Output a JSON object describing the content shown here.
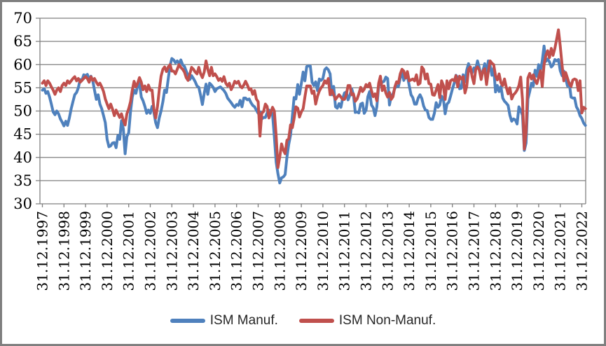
{
  "colors": {
    "frame_border": "#7f7f7f",
    "grid": "#7f7f7f",
    "axis": "#7f7f7f",
    "background": "#ffffff",
    "series_blue": "#4F81BD",
    "series_red": "#C0504D"
  },
  "legend": {
    "items": [
      {
        "label": "ISM Manuf.",
        "color": "#4F81BD"
      },
      {
        "label": "ISM Non-Manuf.",
        "color": "#C0504D"
      }
    ],
    "position": "bottom"
  },
  "chart_data": {
    "type": "line",
    "title": "",
    "xlabel": "",
    "ylabel": "",
    "ylim": [
      30,
      70
    ],
    "y_ticks": [
      70,
      65,
      60,
      55,
      50,
      45,
      40,
      35,
      30
    ],
    "grid": "horizontal",
    "legend_position": "bottom",
    "x_start": "1997-12",
    "x_end": "2023-02",
    "x_step": "1 month",
    "x_tick_labels": [
      "31.12.1997",
      "31.12.1998",
      "31.12.1999",
      "31.12.2000",
      "31.12.2001",
      "31.12.2002",
      "31.12.2003",
      "31.12.2004",
      "31.12.2005",
      "31.12.2006",
      "31.12.2007",
      "31.12.2008",
      "31.12.2009",
      "31.12.2010",
      "31.12.2011",
      "31.12.2012",
      "31.12.2013",
      "31.12.2014",
      "31.12.2015",
      "31.12.2016",
      "31.12.2017",
      "31.12.2018",
      "31.12.2019",
      "31.12.2020",
      "31.12.2021",
      "31.12.2022"
    ],
    "series": [
      {
        "name": "ISM Manuf.",
        "color": "#4F81BD",
        "values": [
          54.5,
          54.8,
          53.8,
          54.2,
          53.0,
          51.5,
          49.8,
          49.2,
          50.0,
          49.4,
          48.3,
          47.6,
          46.8,
          47.8,
          46.9,
          48.5,
          50.5,
          52.0,
          53.5,
          54.0,
          55.0,
          56.8,
          56.6,
          57.8,
          57.6,
          57.9,
          56.8,
          57.5,
          56.5,
          54.5,
          52.5,
          53.5,
          51.5,
          50.5,
          49.0,
          47.5,
          43.9,
          42.3,
          42.5,
          43.1,
          43.2,
          42.1,
          44.7,
          43.9,
          47.9,
          46.2,
          40.8,
          44.5,
          45.3,
          49.9,
          53.0,
          54.5,
          53.8,
          55.5,
          56.0,
          53.0,
          52.2,
          51.0,
          49.5,
          50.2,
          49.5,
          51.0,
          49.8,
          47.5,
          46.4,
          48.5,
          50.0,
          52.0,
          54.5,
          54.0,
          57.0,
          59.8,
          61.3,
          61.0,
          60.4,
          60.8,
          60.2,
          61.0,
          60.0,
          59.6,
          58.6,
          57.6,
          56.8,
          57.6,
          57.0,
          56.3,
          55.4,
          55.1,
          53.3,
          51.4,
          53.8,
          55.8,
          53.6,
          56.0,
          55.6,
          55.1,
          54.2,
          54.8,
          55.0,
          55.2,
          54.8,
          54.4,
          53.8,
          52.8,
          52.3,
          51.8,
          51.2,
          50.8,
          51.4,
          51.2,
          52.3,
          50.9,
          52.8,
          52.8,
          52.4,
          52.6,
          51.8,
          51.2,
          50.9,
          50.2,
          49.5,
          49.8,
          48.3,
          48.6,
          48.6,
          49.6,
          50.2,
          50.0,
          49.3,
          44.5,
          39.0,
          36.5,
          34.5,
          35.6,
          35.8,
          36.3,
          40.1,
          42.8,
          44.8,
          48.9,
          52.9,
          52.6,
          55.7,
          53.6,
          55.9,
          58.4,
          56.5,
          59.6,
          59.7,
          59.7,
          56.2,
          55.5,
          56.3,
          54.4,
          56.9,
          56.6,
          57.0,
          58.9,
          59.3,
          58.9,
          58.0,
          53.5,
          55.3,
          50.9,
          50.6,
          51.6,
          50.8,
          52.7,
          53.9,
          54.1,
          52.4,
          53.4,
          54.8,
          53.5,
          49.7,
          49.8,
          49.6,
          51.5,
          51.7,
          49.5,
          50.2,
          53.1,
          54.2,
          51.3,
          50.7,
          49.0,
          50.9,
          55.4,
          55.7,
          56.2,
          56.4,
          57.3,
          57.0,
          51.3,
          53.2,
          53.7,
          54.9,
          55.4,
          55.3,
          57.1,
          58.5,
          56.6,
          57.9,
          57.6,
          55.5,
          53.5,
          52.9,
          51.5,
          51.5,
          52.8,
          53.5,
          52.7,
          51.1,
          50.2,
          50.1,
          48.6,
          48.2,
          48.2,
          49.5,
          51.8,
          50.8,
          51.3,
          53.2,
          52.6,
          49.4,
          51.5,
          51.9,
          53.2,
          54.7,
          56.0,
          57.7,
          57.2,
          54.8,
          54.9,
          57.8,
          56.3,
          58.8,
          60.2,
          58.7,
          58.2,
          59.3,
          59.1,
          60.8,
          59.3,
          57.3,
          58.7,
          60.2,
          58.1,
          60.8,
          59.8,
          57.7,
          59.3,
          54.1,
          55.5,
          54.2,
          55.3,
          52.8,
          52.1,
          51.7,
          51.2,
          49.1,
          47.8,
          48.3,
          48.1,
          47.2,
          50.9,
          50.1,
          49.1,
          41.5,
          43.1,
          52.6,
          54.2,
          56.0,
          55.4,
          58.8,
          57.5,
          60.0,
          58.7,
          60.8,
          64.0,
          60.7,
          61.2,
          60.6,
          59.5,
          59.9,
          61.1,
          60.8,
          61.1,
          58.7,
          57.6,
          58.6,
          57.1,
          55.4,
          56.1,
          53.0,
          52.8,
          52.8,
          50.9,
          50.2,
          49.0,
          48.4,
          47.4,
          46.9
        ]
      },
      {
        "name": "ISM Non-Manuf.",
        "color": "#C0504D",
        "values": [
          56.0,
          56.5,
          55.5,
          56.5,
          56.0,
          55.2,
          54.5,
          53.6,
          54.5,
          55.0,
          54.2,
          55.5,
          56.0,
          55.5,
          56.5,
          56.0,
          56.5,
          57.0,
          57.4,
          56.5,
          57.0,
          56.2,
          56.6,
          57.0,
          57.4,
          57.0,
          56.2,
          57.4,
          56.6,
          57.0,
          56.2,
          55.6,
          56.0,
          55.2,
          54.2,
          52.6,
          51.5,
          50.5,
          51.5,
          50.4,
          49.0,
          50.2,
          49.4,
          48.6,
          49.4,
          48.0,
          47.0,
          49.4,
          50.5,
          52.0,
          54.5,
          56.4,
          55.2,
          56.0,
          57.2,
          56.2,
          54.6,
          55.4,
          54.2,
          55.6,
          54.5,
          54.5,
          50.5,
          48.5,
          51.0,
          54.5,
          57.5,
          59.0,
          59.5,
          58.5,
          59.5,
          60.0,
          58.6,
          58.6,
          58.0,
          59.0,
          60.0,
          59.4,
          59.0,
          58.4,
          57.2,
          56.6,
          58.0,
          59.4,
          59.0,
          58.4,
          58.0,
          59.4,
          58.0,
          57.2,
          58.4,
          60.8,
          59.0,
          57.6,
          59.4,
          57.6,
          58.0,
          57.4,
          56.6,
          57.0,
          56.4,
          57.4,
          56.0,
          55.4,
          56.0,
          54.6,
          55.4,
          56.4,
          56.0,
          56.4,
          55.4,
          55.0,
          55.6,
          56.4,
          55.6,
          54.6,
          54.8,
          53.6,
          54.4,
          52.6,
          52.0,
          44.6,
          49.5,
          49.9,
          51.5,
          51.0,
          48.5,
          49.6,
          50.8,
          50.0,
          44.6,
          37.8,
          40.1,
          42.9,
          41.6,
          40.8,
          43.7,
          44.0,
          47.0,
          46.4,
          48.4,
          50.9,
          50.6,
          48.7,
          49.8,
          50.5,
          53.0,
          55.4,
          55.4,
          55.4,
          53.8,
          54.3,
          51.5,
          53.2,
          54.3,
          55.0,
          55.5,
          56.5,
          56.0,
          57.0,
          53.5,
          54.5,
          53.5,
          52.5,
          53.0,
          53.5,
          53.0,
          52.5,
          52.5,
          53.5,
          55.5,
          55.5,
          53.5,
          53.7,
          52.1,
          52.6,
          53.7,
          55.1,
          54.2,
          54.7,
          55.7,
          55.2,
          56.0,
          54.4,
          53.1,
          53.7,
          52.2,
          56.0,
          57.5,
          54.4,
          55.4,
          53.9,
          53.0,
          54.0,
          52.5,
          53.1,
          55.2,
          56.3,
          56.0,
          58.0,
          59.0,
          58.6,
          57.1,
          58.5,
          56.5,
          56.7,
          56.9,
          56.5,
          57.8,
          55.7,
          56.0,
          59.5,
          59.0,
          56.9,
          58.0,
          55.9,
          55.8,
          53.5,
          53.4,
          54.5,
          55.7,
          52.9,
          56.5,
          55.5,
          52.5,
          56.5,
          54.8,
          56.5,
          56.8,
          56.5,
          57.6,
          55.2,
          57.5,
          56.9,
          57.4,
          53.9,
          55.3,
          59.0,
          59.5,
          57.4,
          55.9,
          59.0,
          59.5,
          58.8,
          56.8,
          58.6,
          59.1,
          55.7,
          58.5,
          60.8,
          60.3,
          60.0,
          57.6,
          56.7,
          58.0,
          56.1,
          55.5,
          56.9,
          55.1,
          53.7,
          55.0,
          52.6,
          53.5,
          53.9,
          54.5,
          55.5,
          57.3,
          52.5,
          41.8,
          45.4,
          57.1,
          58.1,
          56.9,
          57.8,
          56.6,
          55.9,
          57.2,
          58.7,
          55.3,
          60.0,
          62.0,
          63.0,
          61.5,
          63.5,
          62.0,
          63.5,
          65.5,
          67.5,
          64.0,
          59.9,
          56.5,
          58.3,
          57.1,
          55.9,
          55.3,
          56.7,
          56.9,
          56.7,
          54.4,
          56.5,
          49.6,
          50.8,
          50.5
        ]
      }
    ]
  }
}
